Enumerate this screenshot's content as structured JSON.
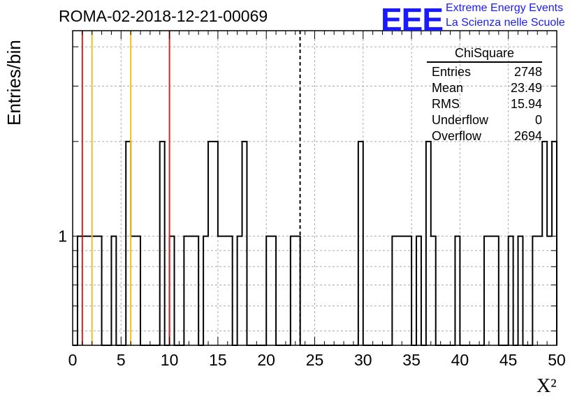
{
  "header": {
    "title": "ROMA-02-2018-12-21-00069",
    "logo_mark": "EEE",
    "logo_line1": "Extreme Energy Events",
    "logo_line2": "La Scienza nelle Scuole",
    "logo_color": "#1a1aff"
  },
  "stats": {
    "title": "ChiSquare",
    "rows": [
      {
        "label": "Entries",
        "value": "2748"
      },
      {
        "label": "Mean",
        "value": "23.49"
      },
      {
        "label": "RMS",
        "value": "15.94"
      },
      {
        "label": "Underflow",
        "value": "0"
      },
      {
        "label": "Overflow",
        "value": "2694"
      }
    ]
  },
  "chart_data": {
    "type": "histogram",
    "title": "ROMA-02-2018-12-21-00069",
    "xlabel": "X²",
    "ylabel": "Entries/bin",
    "xlim": [
      0,
      50
    ],
    "ylog": true,
    "ylim": [
      0.45,
      4.5
    ],
    "grid": true,
    "x_ticks": [
      0,
      5,
      10,
      15,
      20,
      25,
      30,
      35,
      40,
      45,
      50
    ],
    "y_tick_labels": [
      {
        "value": 1,
        "label": "1"
      }
    ],
    "bin_width": 0.5,
    "bins": [
      {
        "x": 0.5,
        "count": 1
      },
      {
        "x": 1.0,
        "count": 1
      },
      {
        "x": 1.5,
        "count": 1
      },
      {
        "x": 2.0,
        "count": 1
      },
      {
        "x": 2.5,
        "count": 1
      },
      {
        "x": 4.0,
        "count": 1
      },
      {
        "x": 5.5,
        "count": 2
      },
      {
        "x": 6.0,
        "count": 1
      },
      {
        "x": 6.5,
        "count": 1
      },
      {
        "x": 9.0,
        "count": 2
      },
      {
        "x": 10.0,
        "count": 1
      },
      {
        "x": 11.5,
        "count": 1
      },
      {
        "x": 12.0,
        "count": 1
      },
      {
        "x": 12.5,
        "count": 1
      },
      {
        "x": 13.5,
        "count": 1
      },
      {
        "x": 14.0,
        "count": 2
      },
      {
        "x": 14.5,
        "count": 2
      },
      {
        "x": 15.0,
        "count": 1
      },
      {
        "x": 15.5,
        "count": 1
      },
      {
        "x": 16.0,
        "count": 1
      },
      {
        "x": 17.0,
        "count": 1
      },
      {
        "x": 17.5,
        "count": 2
      },
      {
        "x": 20.0,
        "count": 1
      },
      {
        "x": 20.5,
        "count": 1
      },
      {
        "x": 22.5,
        "count": 1
      },
      {
        "x": 23.0,
        "count": 1
      },
      {
        "x": 29.5,
        "count": 2
      },
      {
        "x": 33.0,
        "count": 1
      },
      {
        "x": 33.5,
        "count": 1
      },
      {
        "x": 34.0,
        "count": 1
      },
      {
        "x": 34.5,
        "count": 1
      },
      {
        "x": 35.5,
        "count": 1
      },
      {
        "x": 36.5,
        "count": 2
      },
      {
        "x": 37.0,
        "count": 1
      },
      {
        "x": 39.5,
        "count": 1
      },
      {
        "x": 42.5,
        "count": 1
      },
      {
        "x": 43.0,
        "count": 1
      },
      {
        "x": 43.5,
        "count": 1
      },
      {
        "x": 45.0,
        "count": 1
      },
      {
        "x": 46.0,
        "count": 1
      },
      {
        "x": 47.5,
        "count": 1
      },
      {
        "x": 48.0,
        "count": 1
      },
      {
        "x": 48.5,
        "count": 2
      },
      {
        "x": 49.0,
        "count": 1
      },
      {
        "x": 49.5,
        "count": 2
      }
    ],
    "reference_lines": [
      {
        "x": 1.0,
        "color": "#dd2222",
        "style": "solid"
      },
      {
        "x": 2.0,
        "color": "#f0c020",
        "style": "solid"
      },
      {
        "x": 6.0,
        "color": "#f0c020",
        "style": "solid"
      },
      {
        "x": 10.0,
        "color": "#dd2222",
        "style": "solid"
      },
      {
        "x": 23.49,
        "color": "#000000",
        "style": "dashed"
      }
    ]
  }
}
